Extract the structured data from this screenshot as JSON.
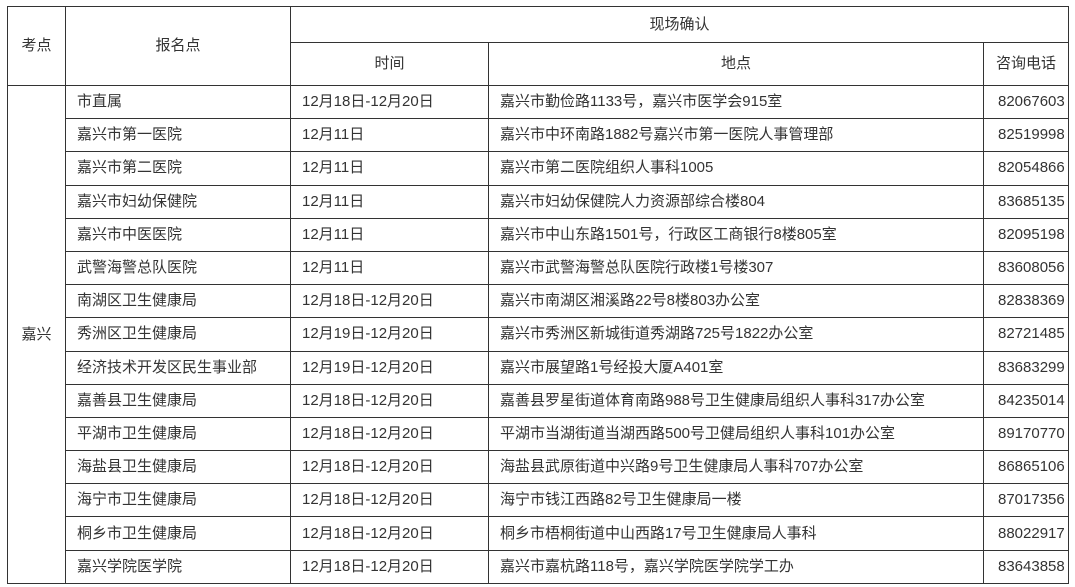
{
  "page": {
    "background_color": "#ffffff",
    "border_color": "#333333",
    "text_color": "#333333"
  },
  "table": {
    "headers": {
      "exam_site": "考点",
      "reg_point": "报名点",
      "onsite_confirm": "现场确认",
      "time": "时间",
      "location": "地点",
      "phone": "咨询电话"
    },
    "exam_site_value": "嘉兴",
    "rows": [
      {
        "site": "市直属",
        "time": "12月18日-12月20日",
        "location": "嘉兴市勤俭路1133号，嘉兴市医学会915室",
        "phone": "82067603"
      },
      {
        "site": "嘉兴市第一医院",
        "time": "12月11日",
        "location": "嘉兴市中环南路1882号嘉兴市第一医院人事管理部",
        "phone": "82519998"
      },
      {
        "site": "嘉兴市第二医院",
        "time": "12月11日",
        "location": "嘉兴市第二医院组织人事科1005",
        "phone": "82054866"
      },
      {
        "site": "嘉兴市妇幼保健院",
        "time": "12月11日",
        "location": "嘉兴市妇幼保健院人力资源部综合楼804",
        "phone": "83685135"
      },
      {
        "site": "嘉兴市中医医院",
        "time": "12月11日",
        "location": "嘉兴市中山东路1501号，行政区工商银行8楼805室",
        "phone": "82095198"
      },
      {
        "site": "武警海警总队医院",
        "time": "12月11日",
        "location": "嘉兴市武警海警总队医院行政楼1号楼307",
        "phone": "83608056"
      },
      {
        "site": "南湖区卫生健康局",
        "time": "12月18日-12月20日",
        "location": "嘉兴市南湖区湘溪路22号8楼803办公室",
        "phone": "82838369"
      },
      {
        "site": "秀洲区卫生健康局",
        "time": "12月19日-12月20日",
        "location": "嘉兴市秀洲区新城街道秀湖路725号1822办公室",
        "phone": "82721485"
      },
      {
        "site": "经济技术开发区民生事业部",
        "time": "12月19日-12月20日",
        "location": "嘉兴市展望路1号经投大厦A401室",
        "phone": "83683299"
      },
      {
        "site": "嘉善县卫生健康局",
        "time": "12月18日-12月20日",
        "location": "嘉善县罗星街道体育南路988号卫生健康局组织人事科317办公室",
        "phone": "84235014"
      },
      {
        "site": "平湖市卫生健康局",
        "time": "12月18日-12月20日",
        "location": "平湖市当湖街道当湖西路500号卫健局组织人事科101办公室",
        "phone": "89170770"
      },
      {
        "site": "海盐县卫生健康局",
        "time": "12月18日-12月20日",
        "location": "海盐县武原街道中兴路9号卫生健康局人事科707办公室",
        "phone": "86865106"
      },
      {
        "site": "海宁市卫生健康局",
        "time": "12月18日-12月20日",
        "location": "海宁市钱江西路82号卫生健康局一楼",
        "phone": "87017356"
      },
      {
        "site": "桐乡市卫生健康局",
        "time": "12月18日-12月20日",
        "location": "桐乡市梧桐街道中山西路17号卫生健康局人事科",
        "phone": "88022917"
      },
      {
        "site": "嘉兴学院医学院",
        "time": "12月18日-12月20日",
        "location": "嘉兴市嘉杭路118号，嘉兴学院医学院学工办",
        "phone": "83643858"
      }
    ]
  }
}
